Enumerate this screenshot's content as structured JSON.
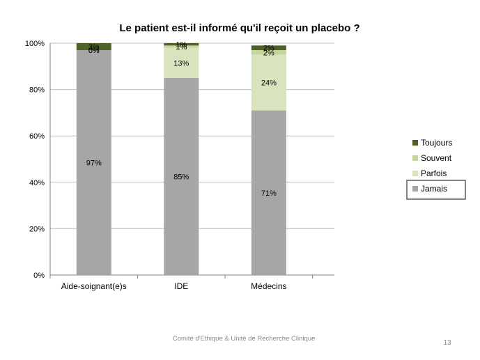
{
  "slide": {
    "footer": "Comité d'Ethique & Unité de Recherche Clinique",
    "page_number": "13"
  },
  "chart_data": {
    "type": "bar",
    "stacked": true,
    "percent": true,
    "title": "Le patient est-il informé qu'il reçoit un placebo ?",
    "xlabel": "",
    "ylabel": "",
    "categories": [
      "Aide-soignant(e)s",
      "IDE",
      "Médecins"
    ],
    "ylim": [
      0,
      100
    ],
    "yticks": [
      "0%",
      "20%",
      "40%",
      "60%",
      "80%",
      "100%"
    ],
    "grid": true,
    "legend_position": "right",
    "series": [
      {
        "name": "Jamais",
        "color": "#a6a6a6",
        "values": [
          97,
          85,
          71
        ],
        "labels": [
          "97%",
          "85%",
          "71%"
        ]
      },
      {
        "name": "Parfois",
        "color": "#d7e4bd",
        "values": [
          0,
          13,
          24
        ],
        "labels": [
          "0%",
          "13%",
          "24%"
        ]
      },
      {
        "name": "Souvent",
        "color": "#c3d69b",
        "values": [
          0,
          1,
          2
        ],
        "labels": [
          "0%",
          "1%",
          "2%"
        ]
      },
      {
        "name": "Toujours",
        "color": "#4f6228",
        "values": [
          3,
          1,
          2
        ],
        "labels": [
          "3%",
          "1%",
          "2%"
        ]
      }
    ],
    "legend_order": [
      "Toujours",
      "Souvent",
      "Parfois",
      "Jamais"
    ],
    "highlighted_legend": "Jamais"
  }
}
